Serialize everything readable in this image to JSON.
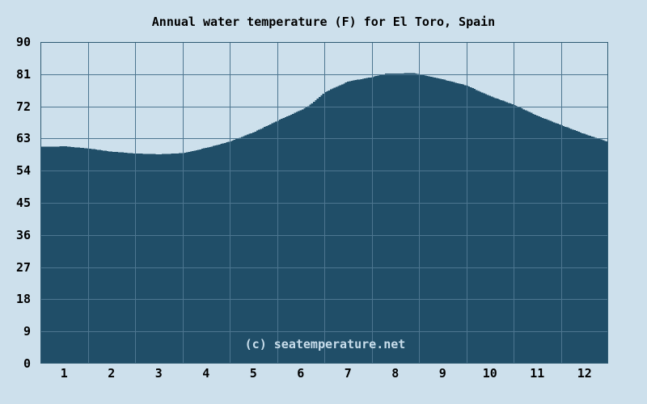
{
  "page": {
    "background_color": "#cde0ec"
  },
  "chart_data": {
    "type": "area",
    "title": "Annual water temperature (F) for El Toro, Spain",
    "watermark": "(c) seatemperature.net",
    "xlabel": "",
    "ylabel": "",
    "ylim": [
      0,
      90
    ],
    "y_tick_step": 9,
    "y_ticks": [
      0,
      9,
      18,
      27,
      36,
      45,
      54,
      63,
      72,
      81,
      90
    ],
    "xlim_months": [
      0,
      12
    ],
    "x_ticks": [
      1,
      2,
      3,
      4,
      5,
      6,
      7,
      8,
      9,
      10,
      11,
      12
    ],
    "categories": [
      "1",
      "2",
      "3",
      "4",
      "5",
      "6",
      "7",
      "8",
      "9",
      "10",
      "11",
      "12"
    ],
    "series": [
      {
        "name": "Water temperature (F)",
        "values": [
          60.8,
          59.3,
          58.6,
          60.4,
          64.8,
          71.0,
          79.0,
          81.2,
          79.5,
          74.8,
          69.3,
          64.2
        ]
      }
    ],
    "profile_samples": [
      [
        0.0,
        60.7
      ],
      [
        0.5,
        60.8
      ],
      [
        1.0,
        60.2
      ],
      [
        1.5,
        59.3
      ],
      [
        2.0,
        58.8
      ],
      [
        2.5,
        58.6
      ],
      [
        3.0,
        58.9
      ],
      [
        3.5,
        60.4
      ],
      [
        4.0,
        62.2
      ],
      [
        4.5,
        64.8
      ],
      [
        5.0,
        68.0
      ],
      [
        5.5,
        71.0
      ],
      [
        5.64,
        72.0
      ],
      [
        5.9,
        74.8
      ],
      [
        6.0,
        76.0
      ],
      [
        6.5,
        79.0
      ],
      [
        7.0,
        80.2
      ],
      [
        7.3,
        81.2
      ],
      [
        7.5,
        81.2
      ],
      [
        7.9,
        81.3
      ],
      [
        8.0,
        80.9
      ],
      [
        8.5,
        79.5
      ],
      [
        9.0,
        77.8
      ],
      [
        9.5,
        74.8
      ],
      [
        10.0,
        72.4
      ],
      [
        10.5,
        69.3
      ],
      [
        11.0,
        66.7
      ],
      [
        11.5,
        64.2
      ],
      [
        12.0,
        62.0
      ]
    ],
    "grid": true,
    "legend_position": "none",
    "colors": {
      "area": "#204e68",
      "grid": "#4d7690",
      "frame": "#2d5a72",
      "background": "#cde0ec",
      "text": "#000000",
      "watermark": "#c8ddeb"
    }
  }
}
